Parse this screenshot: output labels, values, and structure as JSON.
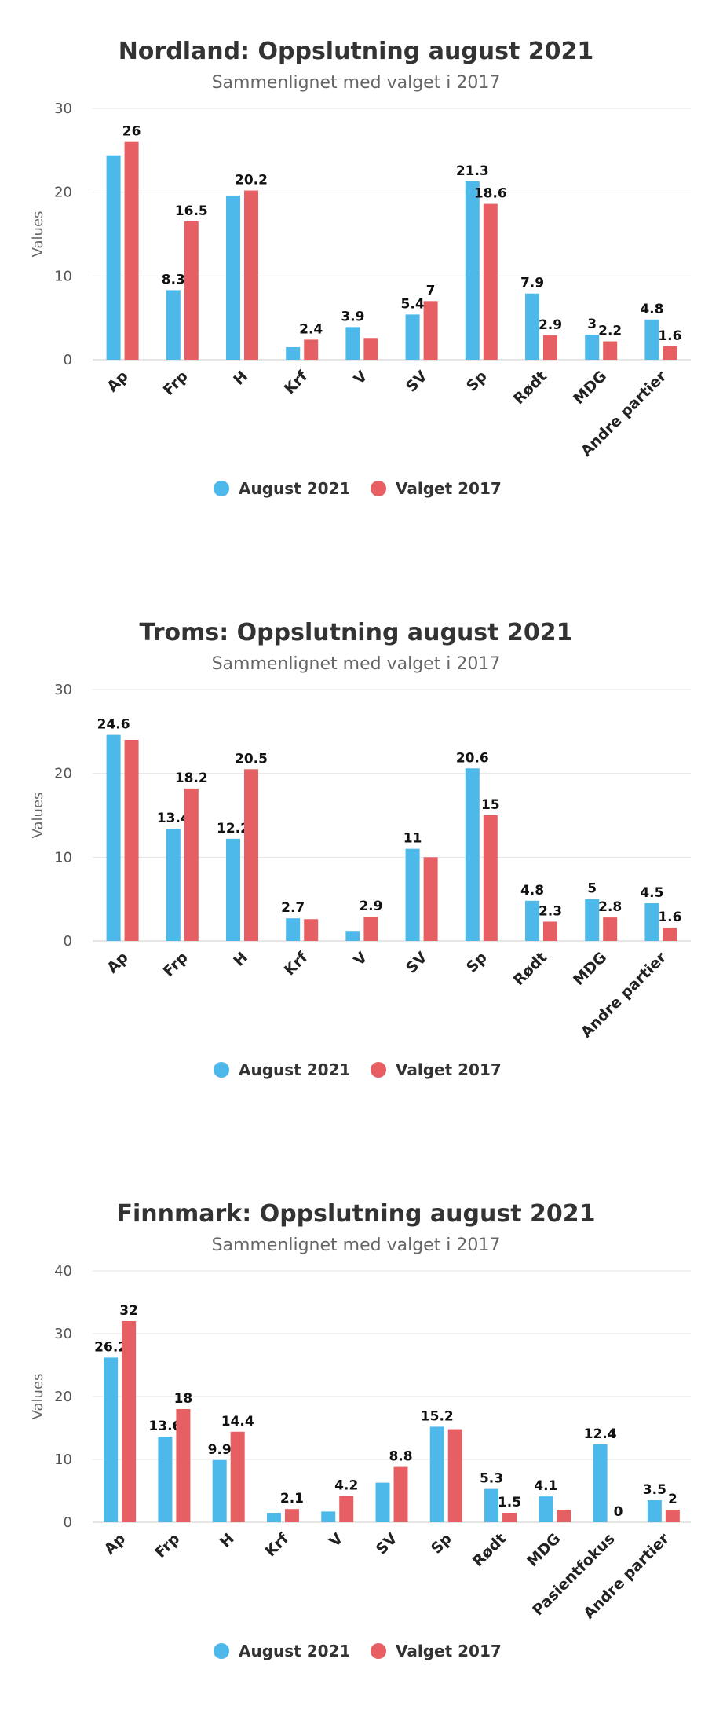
{
  "chart_data": [
    {
      "type": "bar",
      "title": "Nordland: Oppslutning august 2021",
      "subtitle": "Sammenlignet med valget i 2017",
      "ylabel": "Values",
      "ylim": [
        0,
        30
      ],
      "yticks": [
        0,
        10,
        20,
        30
      ],
      "grid": true,
      "legend_position": "bottom",
      "categories": [
        "Ap",
        "Frp",
        "H",
        "Krf",
        "V",
        "SV",
        "Sp",
        "Rødt",
        "MDG",
        "Andre partier"
      ],
      "series": [
        {
          "name": "August 2021",
          "color": "#4db8ea",
          "values": [
            24.4,
            8.3,
            19.6,
            1.5,
            3.9,
            5.4,
            21.3,
            7.9,
            3.0,
            4.8
          ],
          "labels": [
            "",
            "8.3",
            "",
            "",
            "3.9",
            "5.4",
            "21.3",
            "7.9",
            "3",
            "4.8"
          ]
        },
        {
          "name": "Valget 2017",
          "color": "#e66063",
          "values": [
            26,
            16.5,
            20.2,
            2.4,
            2.6,
            7,
            18.6,
            2.9,
            2.2,
            1.6
          ],
          "labels": [
            "26",
            "16.5",
            "20.2",
            "2.4",
            "",
            "7",
            "18.6",
            "2.9",
            "2.2",
            "1.6"
          ]
        }
      ]
    },
    {
      "type": "bar",
      "title": "Troms: Oppslutning august 2021",
      "subtitle": "Sammenlignet med valget i 2017",
      "ylabel": "Values",
      "ylim": [
        0,
        30
      ],
      "yticks": [
        0,
        10,
        20,
        30
      ],
      "grid": true,
      "legend_position": "bottom",
      "categories": [
        "Ap",
        "Frp",
        "H",
        "Krf",
        "V",
        "SV",
        "Sp",
        "Rødt",
        "MDG",
        "Andre partier"
      ],
      "series": [
        {
          "name": "August 2021",
          "color": "#4db8ea",
          "values": [
            24.6,
            13.4,
            12.2,
            2.7,
            1.2,
            11,
            20.6,
            4.8,
            5,
            4.5
          ],
          "labels": [
            "24.6",
            "13.4",
            "12.2",
            "2.7",
            "",
            "11",
            "20.6",
            "4.8",
            "5",
            "4.5"
          ]
        },
        {
          "name": "Valget 2017",
          "color": "#e66063",
          "values": [
            24.0,
            18.2,
            20.5,
            2.6,
            2.9,
            10.0,
            15,
            2.3,
            2.8,
            1.6
          ],
          "labels": [
            "",
            "18.2",
            "20.5",
            "",
            "2.9",
            "",
            "15",
            "2.3",
            "2.8",
            "1.6"
          ]
        }
      ]
    },
    {
      "type": "bar",
      "title": "Finnmark: Oppslutning august 2021",
      "subtitle": "Sammenlignet med valget i 2017",
      "ylabel": "Values",
      "ylim": [
        0,
        40
      ],
      "yticks": [
        0,
        10,
        20,
        30,
        40
      ],
      "grid": true,
      "legend_position": "bottom",
      "categories": [
        "Ap",
        "Frp",
        "H",
        "Krf",
        "V",
        "SV",
        "Sp",
        "Rødt",
        "MDG",
        "Pasientfokus",
        "Andre partier"
      ],
      "series": [
        {
          "name": "August 2021",
          "color": "#4db8ea",
          "values": [
            26.2,
            13.6,
            9.9,
            1.5,
            1.7,
            6.3,
            15.2,
            5.3,
            4.1,
            12.4,
            3.5
          ],
          "labels": [
            "26.2",
            "13.6",
            "9.9",
            "",
            "",
            "",
            "15.2",
            "5.3",
            "4.1",
            "12.4",
            "3.5"
          ]
        },
        {
          "name": "Valget 2017",
          "color": "#e66063",
          "values": [
            32,
            18,
            14.4,
            2.1,
            4.2,
            8.8,
            14.8,
            1.5,
            2.0,
            0,
            2
          ],
          "labels": [
            "32",
            "18",
            "14.4",
            "2.1",
            "4.2",
            "8.8",
            "",
            "1.5",
            "",
            "0",
            "2"
          ]
        }
      ]
    }
  ]
}
